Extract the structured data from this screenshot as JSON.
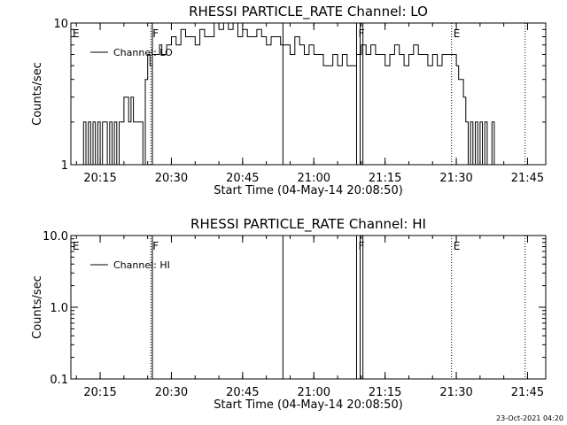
{
  "stamp": "23-Oct-2021 04:20",
  "chart_data": [
    {
      "type": "line",
      "title": "RHESSI PARTICLE_RATE Channel: LO",
      "xlabel": "Start Time (04-May-14 20:08:50)",
      "ylabel": "Counts/sec",
      "yscale": "log",
      "ylim": [
        1,
        10
      ],
      "xlim": [
        "20:08:50",
        "21:48:50"
      ],
      "xticks": [
        "20:15",
        "20:30",
        "20:45",
        "21:00",
        "21:15",
        "21:30",
        "21:45"
      ],
      "yticks": [
        "1",
        "10"
      ],
      "grid": false,
      "legend_position": "top-left",
      "series": [
        {
          "name": "Channel: LO",
          "x": [
            "20:11:00",
            "20:11:30",
            "20:12:00",
            "20:12:30",
            "20:13:00",
            "20:13:30",
            "20:14:00",
            "20:14:30",
            "20:15:00",
            "20:15:30",
            "20:16:00",
            "20:16:30",
            "20:17:00",
            "20:17:30",
            "20:18:00",
            "20:18:30",
            "20:19:00",
            "20:19:30",
            "20:20:00",
            "20:20:30",
            "20:21:00",
            "20:21:30",
            "20:22:00",
            "20:22:30",
            "20:23:00",
            "20:23:30",
            "20:24:00",
            "20:24:30",
            "20:25:00",
            "20:25:30",
            "20:26:00",
            "20:26:30",
            "20:27:00",
            "20:27:30",
            "20:28:00",
            "20:28:30",
            "20:29:00",
            "20:29:30",
            "20:30:00",
            "20:31:00",
            "20:32:00",
            "20:33:00",
            "20:34:00",
            "20:35:00",
            "20:36:00",
            "20:37:00",
            "20:38:00",
            "20:39:00",
            "20:40:00",
            "20:41:00",
            "20:42:00",
            "20:43:00",
            "20:44:00",
            "20:45:00",
            "20:46:00",
            "20:47:00",
            "20:48:00",
            "20:49:00",
            "20:50:00",
            "20:51:00",
            "20:52:00",
            "20:53:00",
            "20:54:00",
            "20:55:00",
            "20:56:00",
            "20:57:00",
            "20:58:00",
            "20:59:00",
            "21:00:00",
            "21:01:00",
            "21:02:00",
            "21:03:00",
            "21:04:00",
            "21:05:00",
            "21:06:00",
            "21:07:00",
            "21:08:00",
            "21:09:00",
            "21:10:00",
            "21:11:00",
            "21:12:00",
            "21:13:00",
            "21:14:00",
            "21:15:00",
            "21:16:00",
            "21:17:00",
            "21:18:00",
            "21:19:00",
            "21:20:00",
            "21:21:00",
            "21:22:00",
            "21:23:00",
            "21:24:00",
            "21:25:00",
            "21:26:00",
            "21:27:00",
            "21:28:00",
            "21:29:00",
            "21:30:00",
            "21:30:30",
            "21:31:00",
            "21:31:30",
            "21:32:00",
            "21:32:30",
            "21:33:00",
            "21:33:30",
            "21:34:00",
            "21:34:30",
            "21:35:00",
            "21:35:30",
            "21:36:00",
            "21:36:30",
            "21:37:00",
            "21:37:30",
            "21:38:00"
          ],
          "values": [
            1,
            2,
            1,
            2,
            1,
            2,
            1,
            2,
            1,
            2,
            2,
            1,
            2,
            1,
            2,
            1,
            2,
            2,
            3,
            3,
            2,
            3,
            2,
            2,
            2,
            2,
            1,
            4,
            6,
            5,
            6,
            6,
            6,
            7,
            6,
            6,
            7,
            7,
            8,
            7,
            9,
            8,
            8,
            7,
            9,
            8,
            8,
            10,
            9,
            10,
            9,
            10,
            8,
            9,
            8,
            8,
            9,
            8,
            7,
            8,
            8,
            7,
            7,
            6,
            8,
            7,
            6,
            7,
            6,
            6,
            5,
            5,
            6,
            5,
            6,
            5,
            5,
            6,
            7,
            6,
            7,
            6,
            6,
            5,
            6,
            7,
            6,
            5,
            6,
            7,
            6,
            6,
            5,
            6,
            5,
            6,
            6,
            6,
            5,
            4,
            4,
            3,
            2,
            1,
            2,
            1,
            2,
            1,
            2,
            1,
            2,
            1,
            1,
            2,
            1
          ]
        }
      ],
      "annotations": [
        {
          "label": "E",
          "x": "20:08:50",
          "style": "dotted"
        },
        {
          "label": "F",
          "x": "20:25:40",
          "style": "dotted"
        },
        {
          "label": "",
          "x": "20:26:00",
          "style": "solid"
        },
        {
          "label": "",
          "x": "20:53:30",
          "style": "solid"
        },
        {
          "label": "F",
          "x": "21:09:00",
          "style": "solid"
        },
        {
          "label": "",
          "x": "21:09:45",
          "style": "solid"
        },
        {
          "label": "",
          "x": "21:10:20",
          "style": "solid"
        },
        {
          "label": "E",
          "x": "21:29:00",
          "style": "dotted"
        },
        {
          "label": "",
          "x": "21:44:30",
          "style": "dotted"
        }
      ]
    },
    {
      "type": "line",
      "title": "RHESSI PARTICLE_RATE Channel: HI",
      "xlabel": "Start Time (04-May-14 20:08:50)",
      "ylabel": "Counts/sec",
      "yscale": "log",
      "ylim": [
        0.1,
        10
      ],
      "xlim": [
        "20:08:50",
        "21:48:50"
      ],
      "xticks": [
        "20:15",
        "20:30",
        "20:45",
        "21:00",
        "21:15",
        "21:30",
        "21:45"
      ],
      "yticks": [
        "0.1",
        "1.0",
        "10.0"
      ],
      "grid": false,
      "legend_position": "top-left",
      "series": [
        {
          "name": "Channel: HI",
          "x": [],
          "values": []
        }
      ],
      "annotations": [
        {
          "label": "E",
          "x": "20:08:50",
          "style": "dotted"
        },
        {
          "label": "F",
          "x": "20:25:40",
          "style": "dotted"
        },
        {
          "label": "",
          "x": "20:26:00",
          "style": "solid"
        },
        {
          "label": "",
          "x": "20:53:30",
          "style": "solid"
        },
        {
          "label": "F",
          "x": "21:09:00",
          "style": "solid"
        },
        {
          "label": "",
          "x": "21:09:45",
          "style": "solid"
        },
        {
          "label": "",
          "x": "21:10:20",
          "style": "solid"
        },
        {
          "label": "E",
          "x": "21:29:00",
          "style": "dotted"
        },
        {
          "label": "",
          "x": "21:44:30",
          "style": "dotted"
        }
      ]
    }
  ]
}
